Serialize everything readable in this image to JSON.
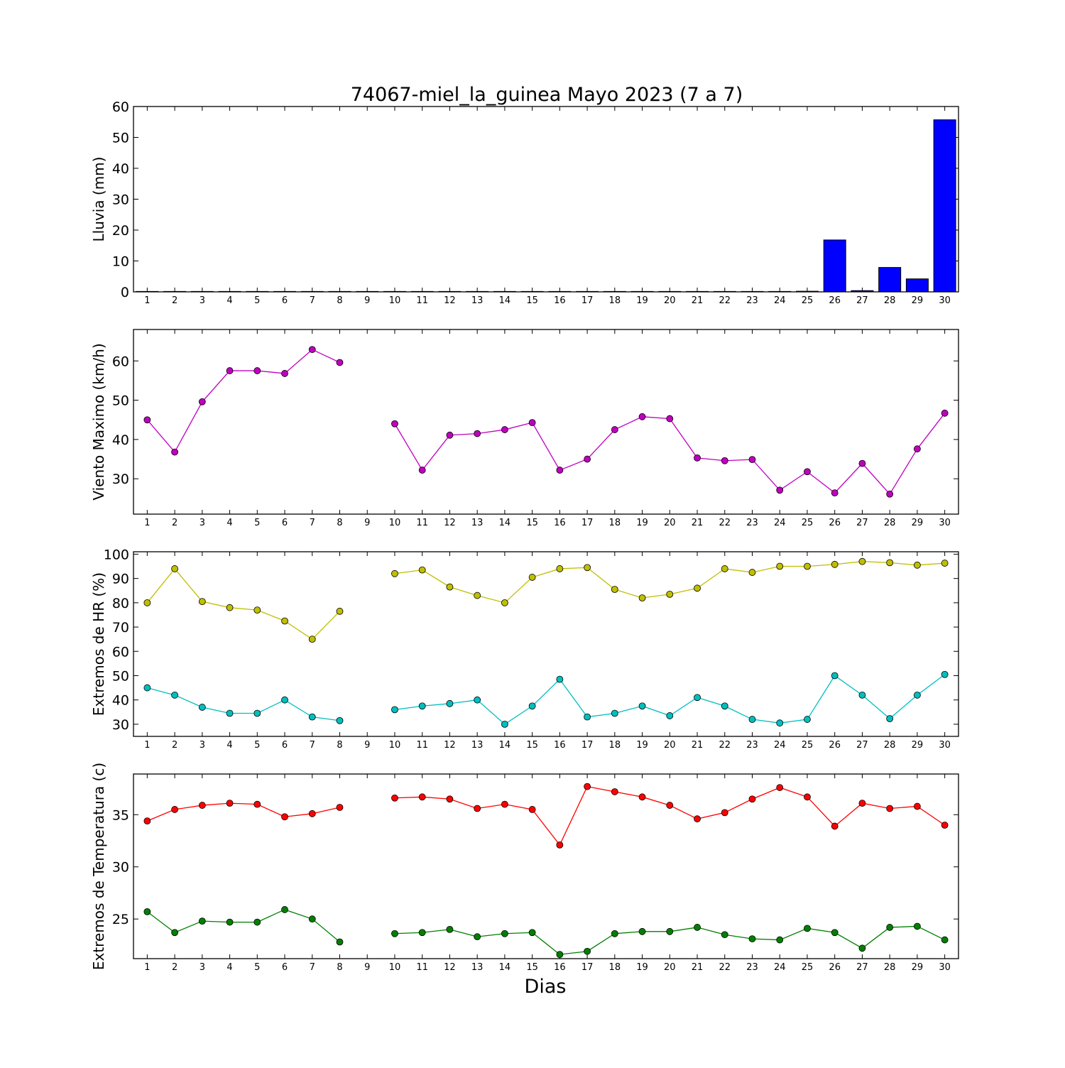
{
  "chart_data": {
    "title": "74067-miel_la_guinea Mayo 2023  (7 a 7)",
    "xlabel": "Dias",
    "days": [
      1,
      2,
      3,
      4,
      5,
      6,
      7,
      8,
      9,
      10,
      11,
      12,
      13,
      14,
      15,
      16,
      17,
      18,
      19,
      20,
      21,
      22,
      23,
      24,
      25,
      26,
      27,
      28,
      29,
      30
    ],
    "panels": [
      {
        "id": "lluvia",
        "type": "bar",
        "ylabel": "Lluvia (mm)",
        "ylim": [
          0,
          60
        ],
        "yticks": [
          0,
          10,
          20,
          30,
          40,
          50,
          60
        ],
        "series": [
          {
            "color": "#0000ff",
            "values": [
              0,
              0,
              0,
              0,
              0,
              0,
              0,
              0,
              0,
              0,
              0,
              0,
              0,
              0,
              0,
              0,
              0,
              0,
              0,
              0,
              0,
              0,
              0,
              0,
              0.2,
              16.8,
              0.4,
              7.9,
              4.2,
              55.7
            ]
          }
        ]
      },
      {
        "id": "viento",
        "type": "line",
        "ylabel": "Viento Maximo (km/h)",
        "ylim": [
          21,
          68
        ],
        "yticks": [
          30,
          40,
          50,
          60
        ],
        "series": [
          {
            "color": "#bf00bf",
            "values": [
              45.0,
              36.8,
              49.6,
              57.5,
              57.5,
              56.8,
              62.9,
              59.6,
              null,
              44.0,
              32.2,
              41.1,
              41.5,
              42.5,
              44.3,
              32.2,
              35.0,
              42.5,
              45.8,
              45.3,
              35.3,
              34.6,
              34.9,
              27.1,
              31.8,
              26.4,
              33.9,
              26.1,
              37.6,
              46.7
            ]
          }
        ]
      },
      {
        "id": "hr",
        "type": "line",
        "ylabel": "Extremos de HR (%)",
        "ylim": [
          25,
          101
        ],
        "yticks": [
          30,
          40,
          50,
          60,
          70,
          80,
          90,
          100
        ],
        "series": [
          {
            "color": "#bfbf00",
            "values": [
              80,
              94,
              80.5,
              78,
              77,
              72.5,
              65,
              76.5,
              null,
              92,
              93.5,
              86.5,
              83,
              80,
              90.5,
              94,
              94.5,
              85.5,
              82,
              83.5,
              86,
              94,
              92.5,
              95,
              95,
              95.8,
              97,
              96.5,
              95.5,
              96.3
            ]
          },
          {
            "color": "#00bfbf",
            "values": [
              45,
              42,
              37,
              34.5,
              34.5,
              40,
              33,
              31.5,
              null,
              36,
              37.5,
              38.5,
              40,
              30,
              37.5,
              48.5,
              33,
              34.5,
              37.5,
              33.5,
              41,
              37.5,
              32,
              30.5,
              32,
              50,
              42,
              32.3,
              42,
              50.5
            ]
          }
        ]
      },
      {
        "id": "temp",
        "type": "line",
        "ylabel": "Extremos de Temperatura (c)",
        "ylim": [
          21.2,
          38.9
        ],
        "yticks": [
          25,
          30,
          35
        ],
        "series": [
          {
            "color": "#ff0000",
            "values": [
              34.4,
              35.5,
              35.9,
              36.1,
              36.0,
              34.8,
              35.1,
              35.7,
              null,
              36.6,
              36.7,
              36.5,
              35.6,
              36.0,
              35.5,
              32.1,
              37.7,
              37.2,
              36.7,
              35.9,
              34.6,
              35.2,
              36.5,
              37.6,
              36.7,
              33.9,
              36.1,
              35.6,
              35.8,
              34.0
            ]
          },
          {
            "color": "#008000",
            "values": [
              25.7,
              23.7,
              24.8,
              24.7,
              24.7,
              25.9,
              25.0,
              22.8,
              null,
              23.6,
              23.7,
              24.0,
              23.3,
              23.6,
              23.7,
              21.6,
              21.9,
              23.6,
              23.8,
              23.8,
              24.2,
              23.5,
              23.1,
              23.0,
              24.1,
              23.7,
              22.2,
              24.2,
              24.3,
              23.0
            ]
          }
        ]
      }
    ]
  }
}
